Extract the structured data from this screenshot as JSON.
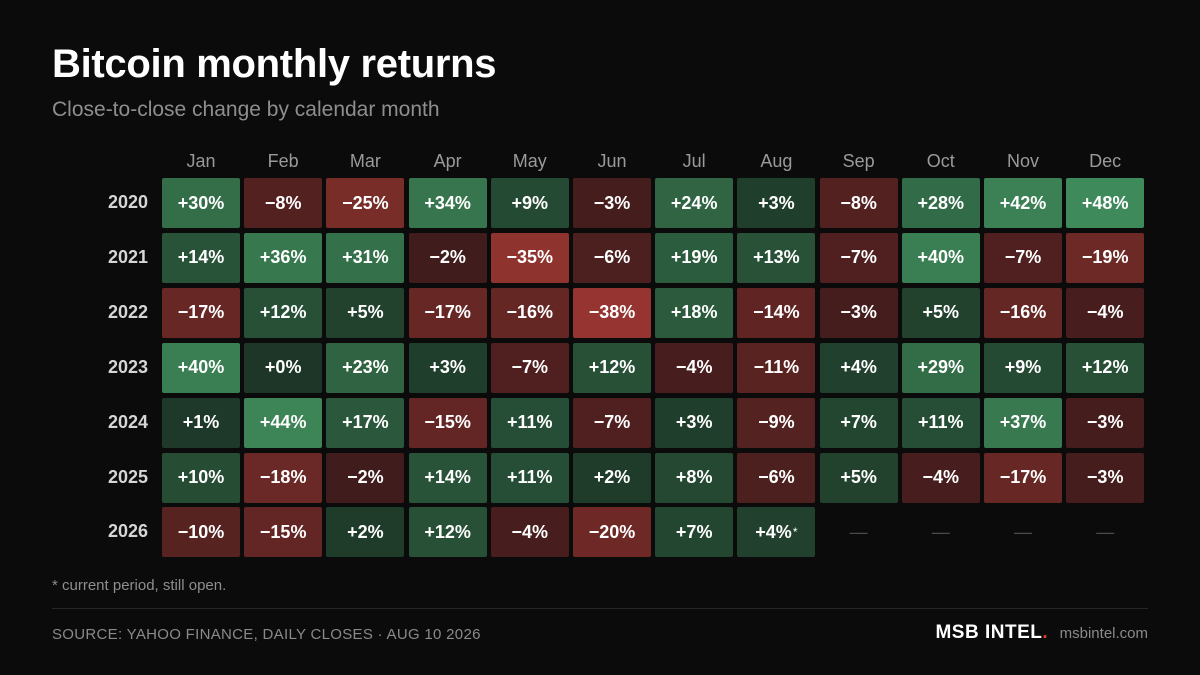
{
  "header": {
    "title": "Bitcoin monthly returns",
    "subtitle": "Close-to-close change by calendar month"
  },
  "chart_data": {
    "type": "heatmap",
    "title": "Bitcoin monthly returns",
    "subtitle": "Close-to-close change by calendar month",
    "unit": "%",
    "columns": [
      "Jan",
      "Feb",
      "Mar",
      "Apr",
      "May",
      "Jun",
      "Jul",
      "Aug",
      "Sep",
      "Oct",
      "Nov",
      "Dec"
    ],
    "rows": [
      "2020",
      "2021",
      "2022",
      "2023",
      "2024",
      "2025",
      "2026"
    ],
    "labels": [
      [
        "+30%",
        "−8%",
        "−25%",
        "+34%",
        "+9%",
        "−3%",
        "+24%",
        "+3%",
        "−8%",
        "+28%",
        "+42%",
        "+48%"
      ],
      [
        "+14%",
        "+36%",
        "+31%",
        "−2%",
        "−35%",
        "−6%",
        "+19%",
        "+13%",
        "−7%",
        "+40%",
        "−7%",
        "−19%"
      ],
      [
        "−17%",
        "+12%",
        "+5%",
        "−17%",
        "−16%",
        "−38%",
        "+18%",
        "−14%",
        "−3%",
        "+5%",
        "−16%",
        "−4%"
      ],
      [
        "+40%",
        "+0%",
        "+23%",
        "+3%",
        "−7%",
        "+12%",
        "−4%",
        "−11%",
        "+4%",
        "+29%",
        "+9%",
        "+12%"
      ],
      [
        "+1%",
        "+44%",
        "+17%",
        "−15%",
        "+11%",
        "−7%",
        "+3%",
        "−9%",
        "+7%",
        "+11%",
        "+37%",
        "−3%"
      ],
      [
        "+10%",
        "−18%",
        "−2%",
        "+14%",
        "+11%",
        "+2%",
        "+8%",
        "−6%",
        "+5%",
        "−4%",
        "−17%",
        "−3%"
      ],
      [
        "−10%",
        "−15%",
        "+2%",
        "+12%",
        "−4%",
        "−20%",
        "+7%",
        "+4%",
        "—",
        "—",
        "—",
        "—"
      ]
    ],
    "values": [
      [
        30,
        -8,
        -25,
        34,
        9,
        -3,
        24,
        3,
        -8,
        28,
        42,
        48
      ],
      [
        14,
        36,
        31,
        -2,
        -35,
        -6,
        19,
        13,
        -7,
        40,
        -7,
        -19
      ],
      [
        -17,
        12,
        5,
        -17,
        -16,
        -38,
        18,
        -14,
        -3,
        5,
        -16,
        -4
      ],
      [
        40,
        0,
        23,
        3,
        -7,
        12,
        -4,
        -11,
        4,
        29,
        9,
        12
      ],
      [
        1,
        44,
        17,
        -15,
        11,
        -7,
        3,
        -9,
        7,
        11,
        37,
        -3
      ],
      [
        10,
        -18,
        -2,
        14,
        11,
        2,
        8,
        -6,
        5,
        -4,
        -17,
        -3
      ],
      [
        -10,
        -15,
        2,
        12,
        -4,
        -20,
        7,
        4,
        null,
        null,
        null,
        null
      ]
    ],
    "open_period_marker": "*",
    "open_period_cell": [
      "2026",
      "Aug"
    ]
  },
  "colors": {
    "positive": "#3f8a5a",
    "negative": "#a93a35",
    "neutral": "#182a20",
    "background": "#0b0b0c",
    "brand_dot": "#e23b2e"
  },
  "footer": {
    "footnote": "* current period, still open.",
    "source": "SOURCE: YAHOO FINANCE, DAILY CLOSES · AUG 10 2026",
    "brand": "MSB INTEL",
    "brand_dot": ".",
    "site": "msbintel.com"
  }
}
